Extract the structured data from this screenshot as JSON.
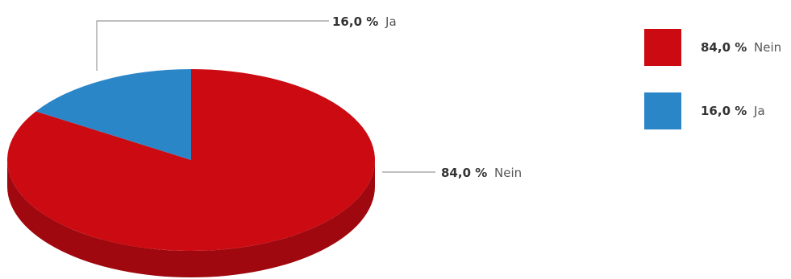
{
  "chart_data": {
    "type": "pie",
    "style": "3d",
    "slices": [
      {
        "label": "Nein",
        "value": 84.0,
        "value_text": "84,0 %",
        "color": "#cc0a12"
      },
      {
        "label": "Ja",
        "value": 16.0,
        "value_text": "16,0 %",
        "color": "#2b86c8"
      }
    ],
    "legend_placement": "right"
  }
}
